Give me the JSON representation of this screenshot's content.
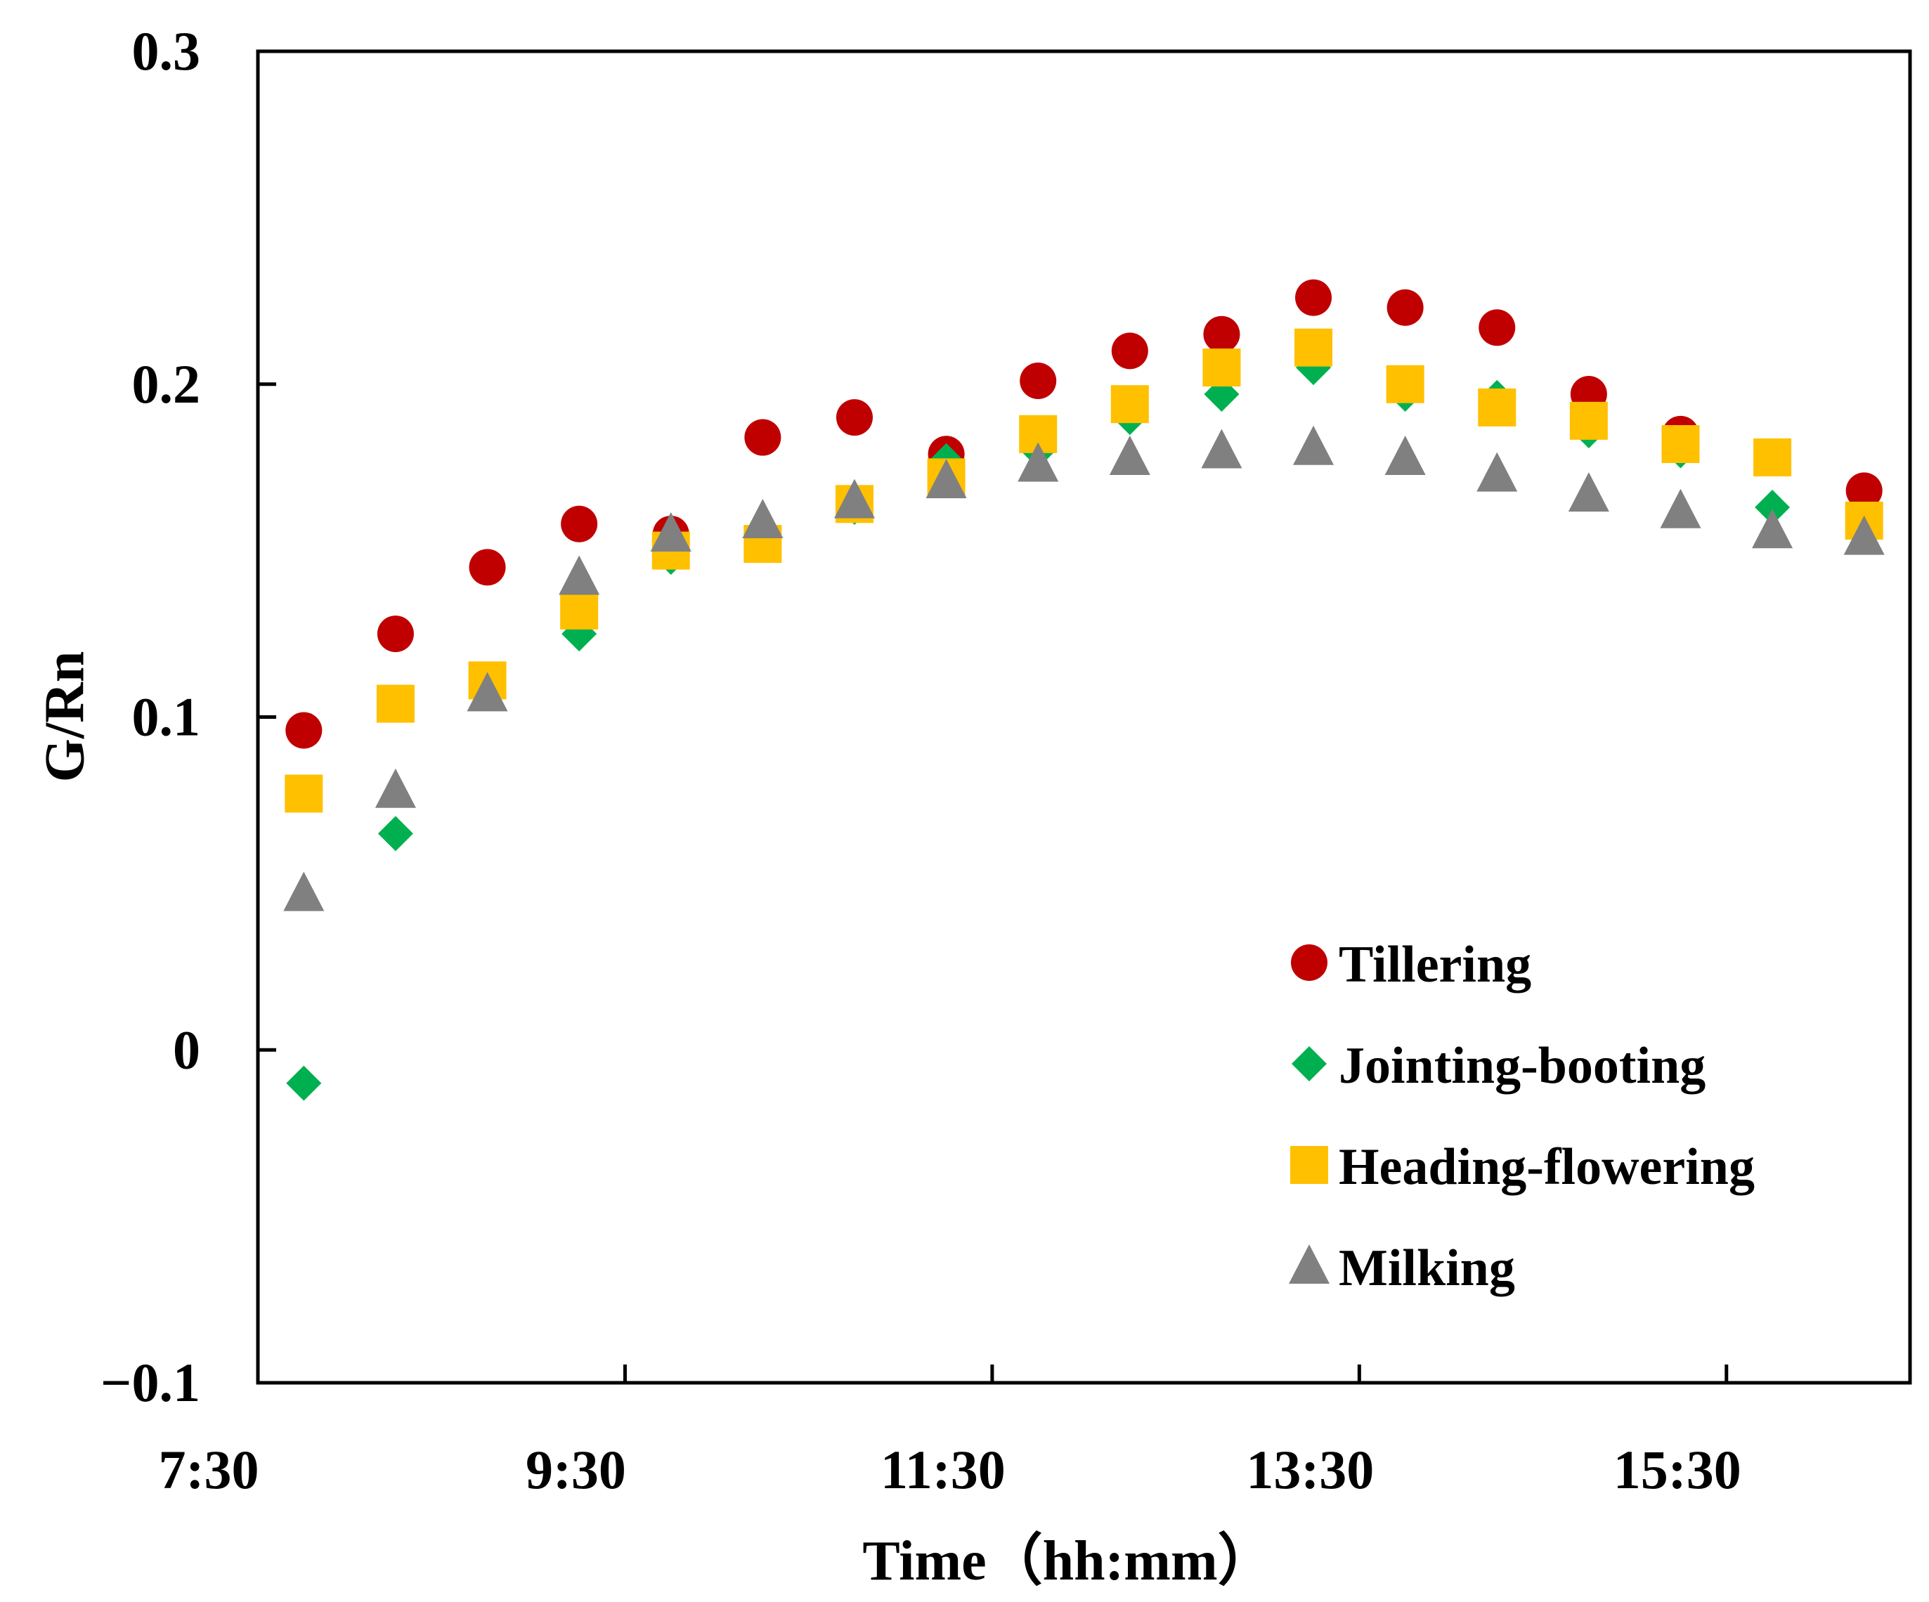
{
  "chart_data": {
    "type": "scatter",
    "title": "",
    "xlabel": "Time（hh:mm）",
    "ylabel": "G/Rn",
    "x_tick_labels": [
      "7:30",
      "9:30",
      "11:30",
      "13:30",
      "15:30"
    ],
    "x_tick_values_hours": [
      7.5,
      9.5,
      11.5,
      13.5,
      15.5
    ],
    "y_tick_labels": [
      "0.3",
      "0.2",
      "0.1",
      "0",
      "−0.1"
    ],
    "y_tick_values": [
      0.3,
      0.2,
      0.1,
      0,
      -0.1
    ],
    "xlim_hours": [
      7.5,
      16.5
    ],
    "ylim": [
      -0.1,
      0.3
    ],
    "grid": false,
    "legend_position": "lower-right",
    "x_hours": [
      7.75,
      8.25,
      8.75,
      9.25,
      9.75,
      10.25,
      10.75,
      11.25,
      11.75,
      12.25,
      12.75,
      13.25,
      13.75,
      14.25,
      14.75,
      15.25,
      15.75,
      16.25
    ],
    "series": [
      {
        "name": "Tillering",
        "marker": "circle",
        "color": "#C00000",
        "values": [
          0.096,
          0.125,
          0.145,
          0.158,
          0.155,
          0.184,
          0.19,
          0.179,
          0.201,
          0.21,
          0.215,
          0.226,
          0.223,
          0.217,
          0.197,
          0.185,
          0.178,
          0.168
        ]
      },
      {
        "name": "Jointing-booting",
        "marker": "diamond",
        "color": "#00B050",
        "values": [
          -0.01,
          0.065,
          0.108,
          0.125,
          0.148,
          0.153,
          0.163,
          0.177,
          0.18,
          0.19,
          0.197,
          0.205,
          0.197,
          0.196,
          0.186,
          0.18,
          0.163,
          0.156
        ]
      },
      {
        "name": "Heading-flowering",
        "marker": "square",
        "color": "#FFC000",
        "values": [
          0.077,
          0.104,
          0.111,
          0.132,
          0.15,
          0.152,
          0.164,
          0.172,
          0.185,
          0.194,
          0.205,
          0.211,
          0.2,
          0.193,
          0.189,
          0.182,
          0.178,
          0.159
        ]
      },
      {
        "name": "Milking",
        "marker": "triangle",
        "color": "#808080",
        "values": [
          0.047,
          0.078,
          0.107,
          0.142,
          0.155,
          0.159,
          0.165,
          0.171,
          0.176,
          0.178,
          0.18,
          0.181,
          0.178,
          0.173,
          0.167,
          0.162,
          0.156,
          0.154
        ]
      }
    ]
  }
}
